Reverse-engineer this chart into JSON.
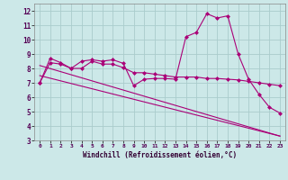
{
  "xlabel": "Windchill (Refroidissement éolien,°C)",
  "bg_color": "#cce8e8",
  "grid_color": "#aacccc",
  "line_color": "#aa0077",
  "xlim": [
    -0.5,
    23.5
  ],
  "ylim": [
    3,
    12.5
  ],
  "xticks": [
    0,
    1,
    2,
    3,
    4,
    5,
    6,
    7,
    8,
    9,
    10,
    11,
    12,
    13,
    14,
    15,
    16,
    17,
    18,
    19,
    20,
    21,
    22,
    23
  ],
  "yticks": [
    3,
    4,
    5,
    6,
    7,
    8,
    9,
    10,
    11,
    12
  ],
  "series1_x": [
    0,
    1,
    2,
    3,
    4,
    5,
    6,
    7,
    8,
    9,
    10,
    11,
    12,
    13,
    14,
    15,
    16,
    17,
    18,
    19,
    20,
    21,
    22,
    23
  ],
  "series1_y": [
    7.0,
    8.7,
    8.4,
    8.0,
    8.5,
    8.6,
    8.5,
    8.6,
    8.35,
    6.8,
    7.25,
    7.3,
    7.3,
    7.25,
    10.2,
    10.5,
    11.8,
    11.5,
    11.65,
    9.0,
    7.25,
    6.2,
    5.3,
    4.9
  ],
  "series2_x": [
    0,
    1,
    2,
    3,
    4,
    5,
    6,
    7,
    8,
    9,
    10,
    11,
    12,
    13,
    14,
    15,
    16,
    17,
    18,
    19,
    20,
    21,
    22,
    23
  ],
  "series2_y": [
    7.0,
    8.4,
    8.3,
    8.0,
    8.0,
    8.5,
    8.3,
    8.3,
    8.05,
    7.7,
    7.7,
    7.6,
    7.5,
    7.4,
    7.4,
    7.4,
    7.3,
    7.3,
    7.25,
    7.2,
    7.1,
    7.0,
    6.9,
    6.8
  ],
  "series3_x": [
    0,
    23
  ],
  "series3_y": [
    8.2,
    3.3
  ],
  "series4_x": [
    0,
    23
  ],
  "series4_y": [
    7.5,
    3.3
  ]
}
